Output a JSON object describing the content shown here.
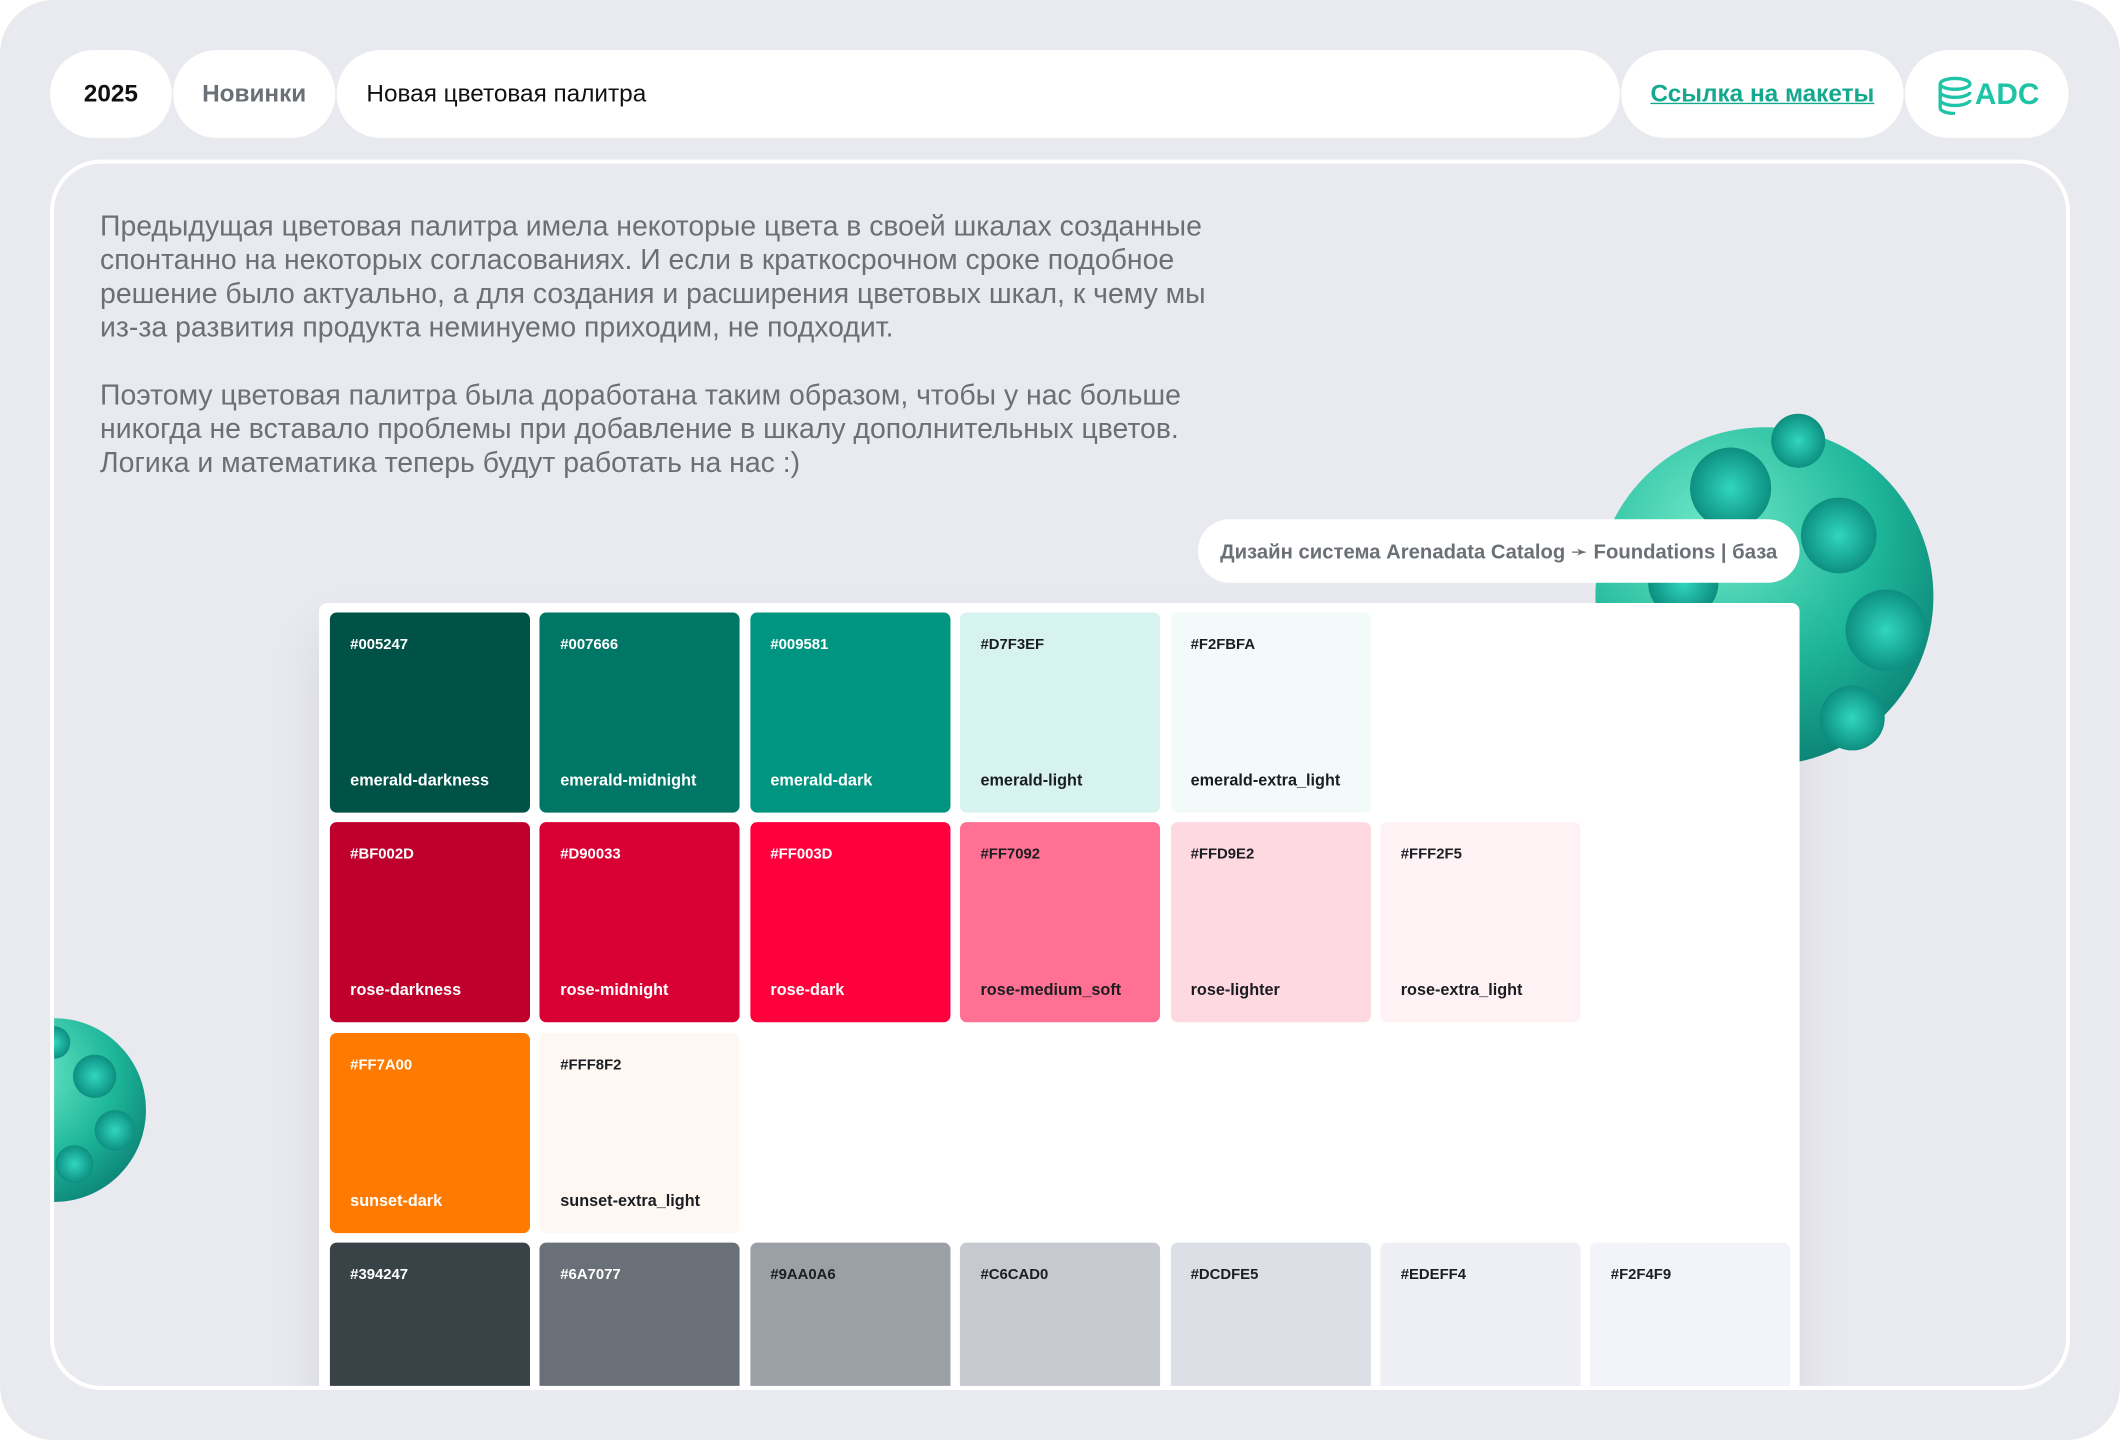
{
  "header": {
    "year": "2025",
    "section": "Новинки",
    "title": "Новая цветовая палитра",
    "link": "Ссылка на макеты",
    "logo": "ADC"
  },
  "intro": {
    "paragraphs": [
      [
        "Предыдущая цветовая палитра имела некоторые цвета в своей шкалах созданные",
        "спонтанно на некоторых согласованиях. И если в краткосрочном сроке подобное",
        "решение было актуально, а для создания и расширения цветовых шкал, к чему мы",
        "из-за развития продукта неминуемо приходим, не подходит."
      ],
      [
        "Поэтому цветовая палитра была доработана таким образом, чтобы у нас больше",
        "никогда не вставало проблемы при добавление в шкалу дополнительных цветов.",
        "Логика и математика теперь будут работать на нас :)"
      ]
    ]
  },
  "breadcrumb": "Дизайн система Arenadata Catalog ➛ Foundations | база",
  "palette": {
    "rows": [
      [
        {
          "hex": "#005247",
          "name": "emerald-darkness"
        },
        {
          "hex": "#007666",
          "name": "emerald-midnight"
        },
        {
          "hex": "#009581",
          "name": "emerald-dark"
        },
        {
          "hex": "#D7F3EF",
          "name": "emerald-light"
        },
        {
          "hex": "#F2FBFA",
          "name": "emerald-extra_light"
        }
      ],
      [
        {
          "hex": "#BF002D",
          "name": "rose-darkness"
        },
        {
          "hex": "#D90033",
          "name": "rose-midnight"
        },
        {
          "hex": "#FF003D",
          "name": "rose-dark"
        },
        {
          "hex": "#FF7092",
          "name": "rose-medium_soft"
        },
        {
          "hex": "#FFD9E2",
          "name": "rose-lighter"
        },
        {
          "hex": "#FFF2F5",
          "name": "rose-extra_light"
        }
      ],
      [
        {
          "hex": "#FF7A00",
          "name": "sunset-dark"
        },
        {
          "hex": "#FFF8F2",
          "name": "sunset-extra_light"
        }
      ],
      [
        {
          "hex": "#394247"
        },
        {
          "hex": "#6A7077"
        },
        {
          "hex": "#9AA0A6"
        },
        {
          "hex": "#C6CAD0"
        },
        {
          "hex": "#DCDFE5"
        },
        {
          "hex": "#EDEFF4"
        },
        {
          "hex": "#F2F4F9"
        }
      ]
    ]
  }
}
